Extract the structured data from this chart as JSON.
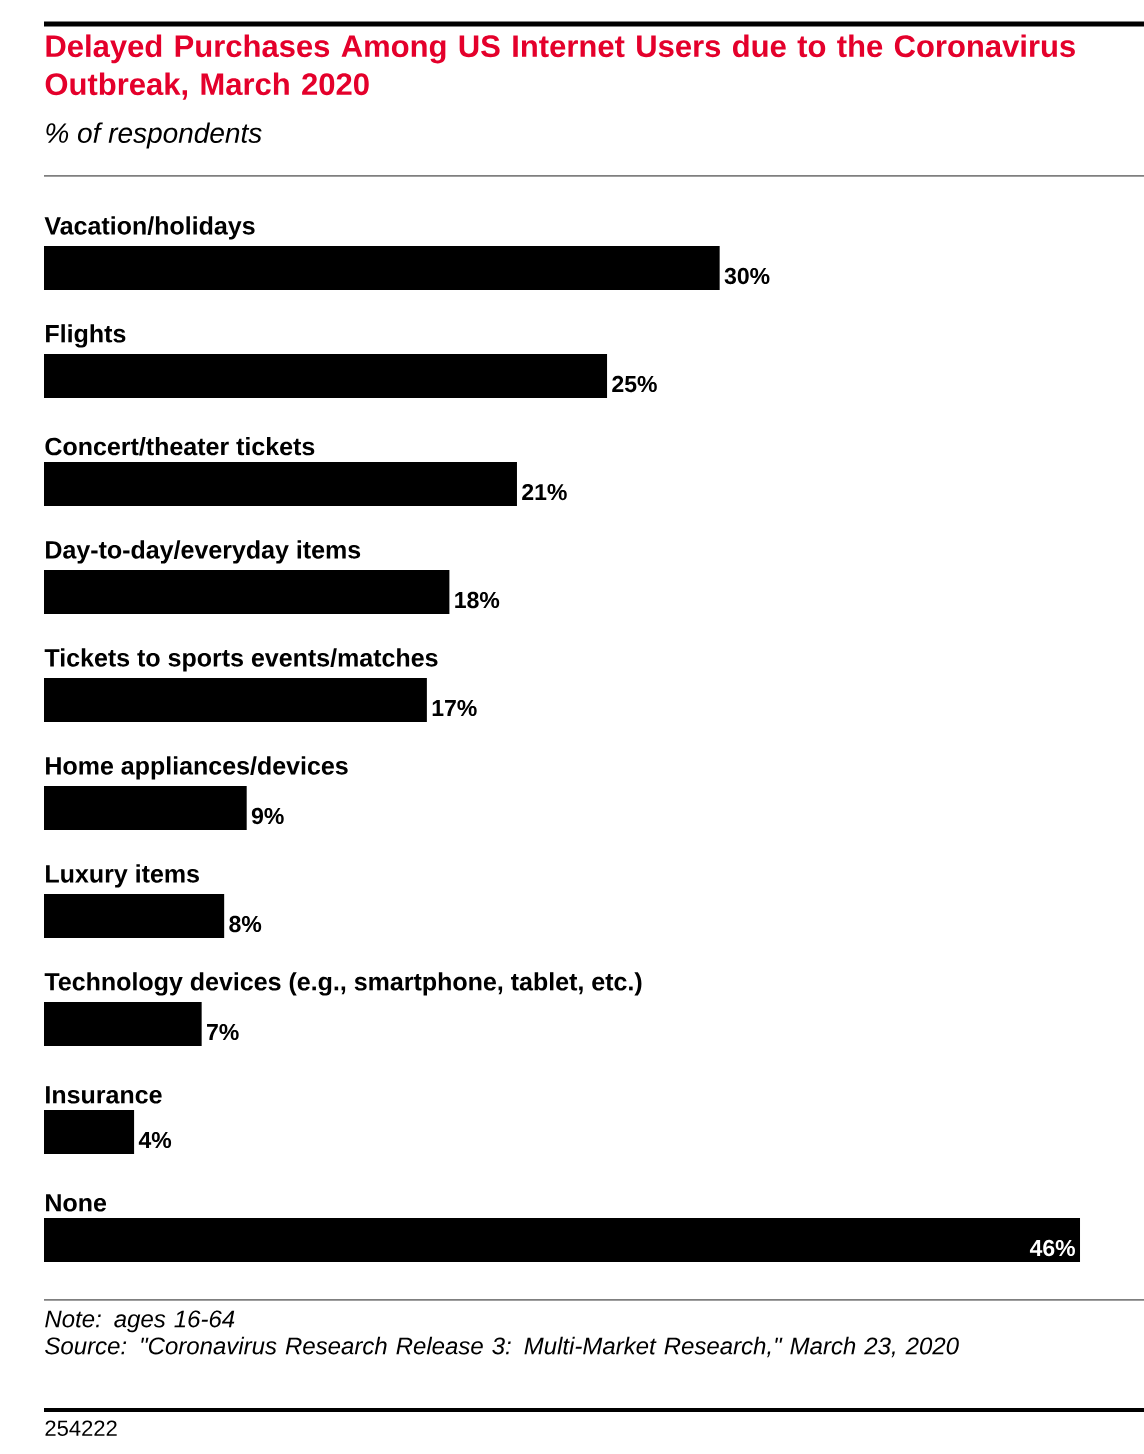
{
  "chart_data": {
    "type": "bar",
    "orientation": "horizontal",
    "title": "Delayed Purchases Among US Internet Users due to the Coronavirus Outbreak, March 2020",
    "subtitle": "% of respondents",
    "categories": [
      "Vacation/holidays",
      "Flights",
      "Concert/theater tickets",
      "Day-to-day/everyday items",
      "Tickets to sports events/matches",
      "Home appliances/devices",
      "Luxury items",
      "Technology devices (e.g., smartphone, tablet, etc.)",
      "Insurance",
      "None"
    ],
    "values": [
      30,
      25,
      21,
      18,
      17,
      9,
      8,
      7,
      4,
      46
    ],
    "value_labels": [
      "30%",
      "25%",
      "21%",
      "18%",
      "17%",
      "9%",
      "8%",
      "7%",
      "4%",
      "46%"
    ],
    "color": "#000000",
    "annotations": [
      "Note: ages 16-64",
      "Source: \"Coronavirus Research Release 3: Multi-Market Research,\" March 23, 2020",
      "254222"
    ]
  }
}
